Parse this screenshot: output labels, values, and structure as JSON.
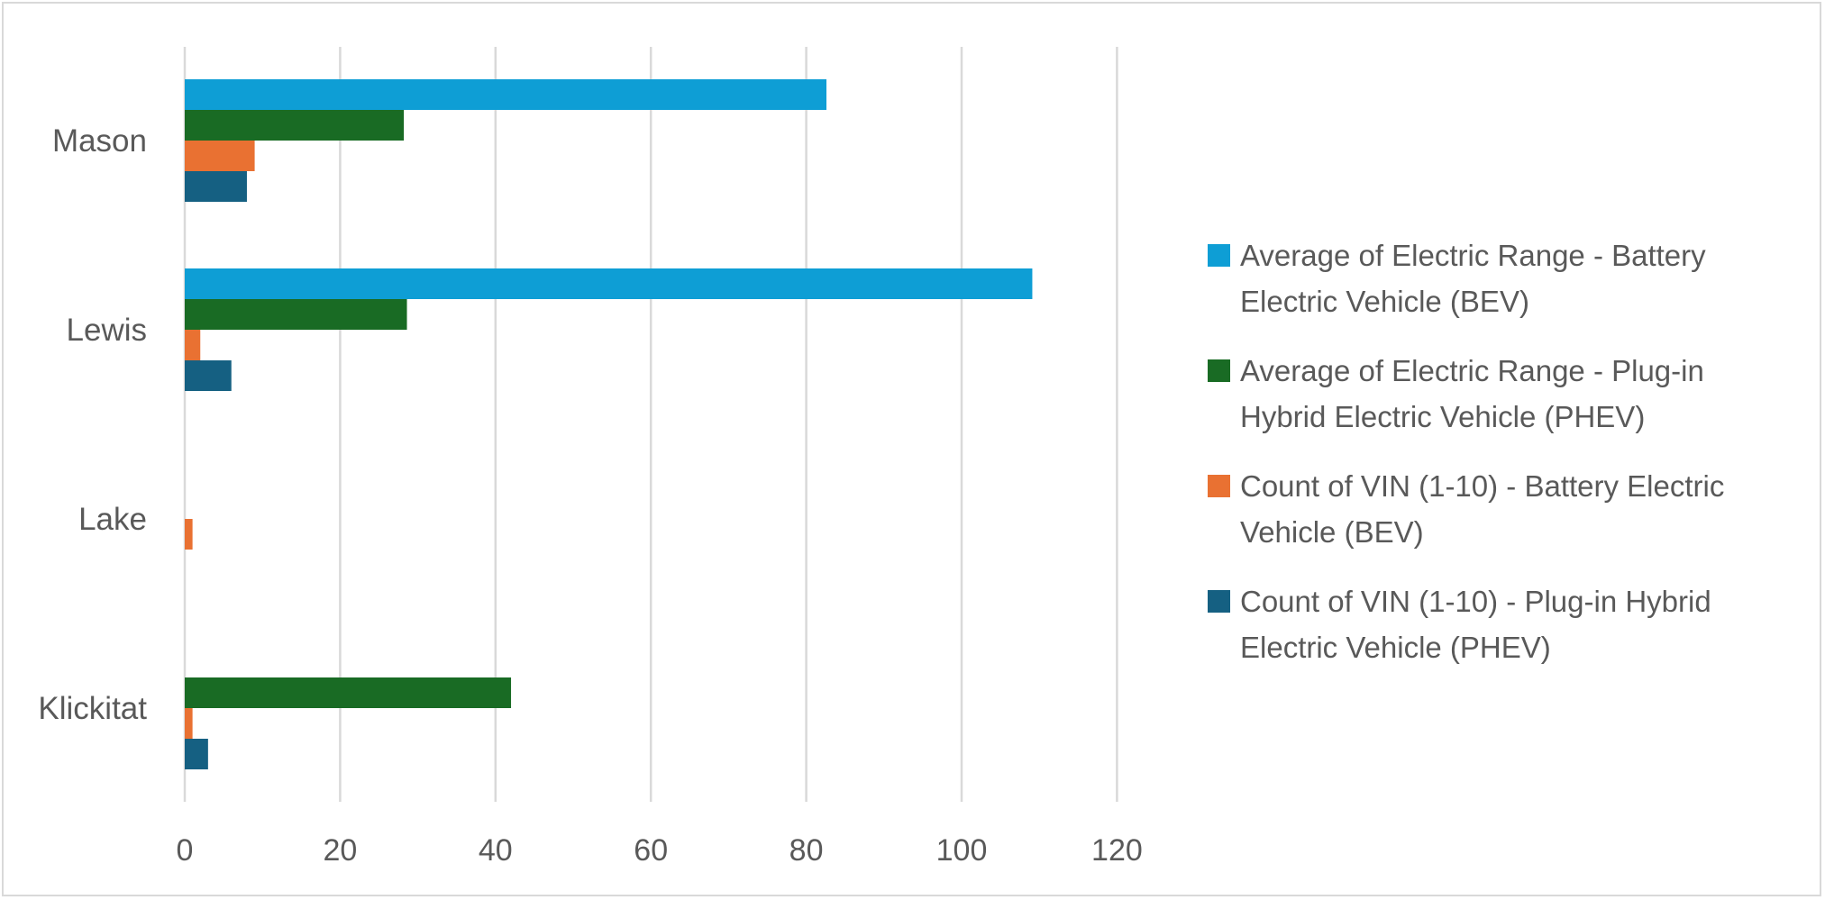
{
  "chart_data": {
    "type": "bar",
    "orientation": "horizontal",
    "categories": [
      "Mason",
      "Lewis",
      "Lake",
      "Klickitat"
    ],
    "series": [
      {
        "name": "Average of Electric Range - Battery Electric Vehicle (BEV)",
        "color": "#0E9ED5",
        "values": [
          82.6,
          109.1,
          null,
          null
        ]
      },
      {
        "name": "Average of Electric Range - Plug-in Hybrid Electric Vehicle (PHEV)",
        "color": "#196B24",
        "values": [
          28.2,
          28.6,
          null,
          42
        ]
      },
      {
        "name": "Count of VIN (1-10) - Battery Electric Vehicle (BEV)",
        "color": "#E97132",
        "values": [
          9,
          2,
          1,
          1
        ]
      },
      {
        "name": "Count of VIN (1-10) - Plug-in Hybrid Electric Vehicle (PHEV)",
        "color": "#156082",
        "values": [
          8,
          6,
          null,
          3
        ]
      }
    ],
    "xlim": [
      0,
      120
    ],
    "xticks": [
      "0",
      "20",
      "40",
      "60",
      "80",
      "100",
      "120"
    ],
    "title": "",
    "xlabel": "",
    "ylabel": "",
    "grid": "vertical",
    "legend_position": "right"
  }
}
